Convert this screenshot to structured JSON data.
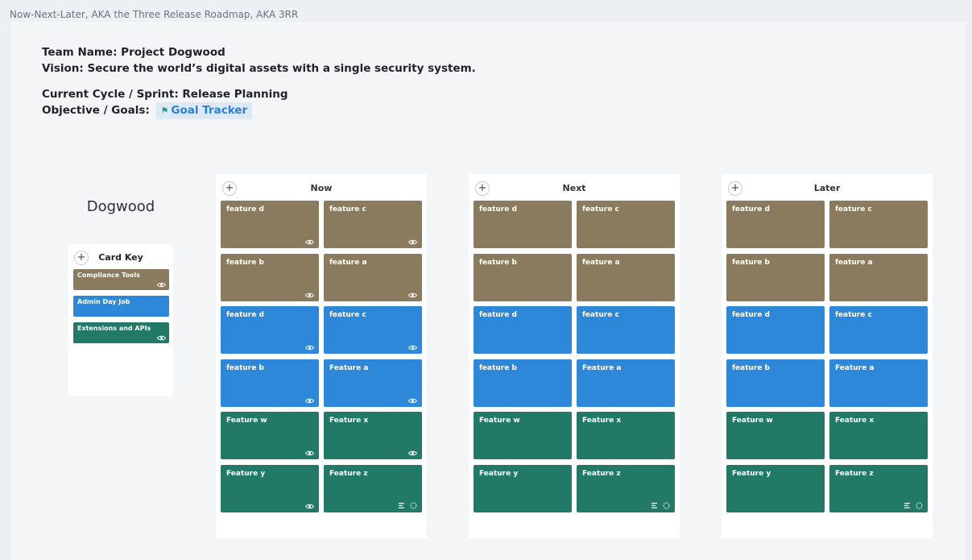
{
  "page_title": "Now-Next-Later, AKA the Three Release Roadmap, AKA 3RR",
  "header": {
    "team_line": "Team Name: Project Dogwood",
    "vision_line": "Vision: Secure the world’s digital assets with a single security system.",
    "cycle_line": "Current Cycle / Sprint: Release Planning",
    "objective_label": "Objective / Goals:",
    "goal_link": "Goal Tracker"
  },
  "board_title": "Dogwood",
  "colors": {
    "brown": "#8a7a5e",
    "blue": "#2e88d9",
    "green": "#227a66"
  },
  "card_key": {
    "title": "Card Key",
    "add_label": "+",
    "items": [
      {
        "label": "Compliance Tools",
        "color": "#8a7a5e"
      },
      {
        "label": "Admin Day Job",
        "color": "#2e88d9"
      },
      {
        "label": "Extensions and APIs",
        "color": "#227a66"
      }
    ]
  },
  "columns": [
    {
      "title": "Now",
      "add_label": "+",
      "cards": [
        {
          "label": "feature d",
          "color": "#8a7a5e",
          "icon": "eye-icon"
        },
        {
          "label": "feature c",
          "color": "#8a7a5e",
          "icon": "eye-icon"
        },
        {
          "label": "feature b",
          "color": "#8a7a5e",
          "icon": "eye-icon"
        },
        {
          "label": "feature a",
          "color": "#8a7a5e",
          "icon": "eye-icon"
        },
        {
          "label": "feature d",
          "color": "#2e88d9",
          "icon": "eye-icon"
        },
        {
          "label": "feature c",
          "color": "#2e88d9",
          "icon": "eye-icon"
        },
        {
          "label": "feature b",
          "color": "#2e88d9",
          "icon": "eye-icon"
        },
        {
          "label": "Feature a",
          "color": "#2e88d9",
          "icon": "eye-icon"
        },
        {
          "label": "Feature w",
          "color": "#227a66",
          "icon": "eye-icon"
        },
        {
          "label": "Feature x",
          "color": "#227a66",
          "icon": "eye-icon"
        },
        {
          "label": "Feature y",
          "color": "#227a66",
          "icon": "eye-icon"
        },
        {
          "label": "Feature z",
          "color": "#227a66",
          "icon": "description-progress-icons"
        }
      ]
    },
    {
      "title": "Next",
      "add_label": "+",
      "cards": [
        {
          "label": "feature d",
          "color": "#8a7a5e",
          "icon": ""
        },
        {
          "label": "feature c",
          "color": "#8a7a5e",
          "icon": ""
        },
        {
          "label": "feature b",
          "color": "#8a7a5e",
          "icon": ""
        },
        {
          "label": "feature a",
          "color": "#8a7a5e",
          "icon": ""
        },
        {
          "label": "feature d",
          "color": "#2e88d9",
          "icon": ""
        },
        {
          "label": "feature c",
          "color": "#2e88d9",
          "icon": ""
        },
        {
          "label": "feature b",
          "color": "#2e88d9",
          "icon": ""
        },
        {
          "label": "Feature a",
          "color": "#2e88d9",
          "icon": ""
        },
        {
          "label": "Feature w",
          "color": "#227a66",
          "icon": ""
        },
        {
          "label": "Feature x",
          "color": "#227a66",
          "icon": ""
        },
        {
          "label": "Feature y",
          "color": "#227a66",
          "icon": ""
        },
        {
          "label": "Feature z",
          "color": "#227a66",
          "icon": "description-progress-icons"
        }
      ]
    },
    {
      "title": "Later",
      "add_label": "+",
      "cards": [
        {
          "label": "feature d",
          "color": "#8a7a5e",
          "icon": ""
        },
        {
          "label": "feature c",
          "color": "#8a7a5e",
          "icon": ""
        },
        {
          "label": "feature b",
          "color": "#8a7a5e",
          "icon": ""
        },
        {
          "label": "feature a",
          "color": "#8a7a5e",
          "icon": ""
        },
        {
          "label": "feature d",
          "color": "#2e88d9",
          "icon": ""
        },
        {
          "label": "feature c",
          "color": "#2e88d9",
          "icon": ""
        },
        {
          "label": "feature b",
          "color": "#2e88d9",
          "icon": ""
        },
        {
          "label": "Feature a",
          "color": "#2e88d9",
          "icon": ""
        },
        {
          "label": "Feature w",
          "color": "#227a66",
          "icon": ""
        },
        {
          "label": "Feature x",
          "color": "#227a66",
          "icon": ""
        },
        {
          "label": "Feature y",
          "color": "#227a66",
          "icon": ""
        },
        {
          "label": "Feature z",
          "color": "#227a66",
          "icon": "description-progress-icons"
        }
      ]
    }
  ]
}
